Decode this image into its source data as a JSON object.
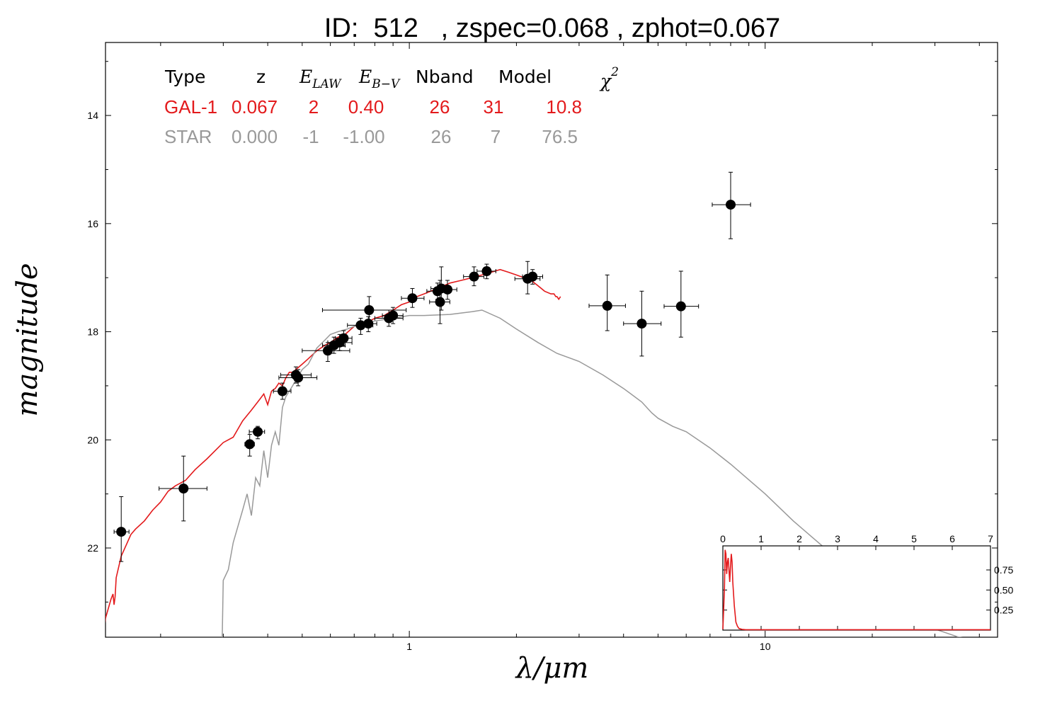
{
  "title": "ID:  512   , zspec=0.068 , zphot=0.067",
  "colors": {
    "galaxy": "#e31a1c",
    "star": "#999999",
    "points": "#000000"
  },
  "table": {
    "headers": [
      "Type",
      "z",
      "E",
      "LAW",
      "E",
      "B−V",
      "Nband",
      "Model",
      "χ",
      "2"
    ],
    "rows": [
      {
        "cells": [
          "GAL-1",
          "0.067",
          "2",
          "0.40",
          "26",
          "31",
          "10.8"
        ],
        "color": "#e31a1c"
      },
      {
        "cells": [
          "STAR",
          "0.000",
          "-1",
          "-1.00",
          "26",
          "7",
          "76.5"
        ],
        "color": "#999999"
      }
    ]
  },
  "chart_data": {
    "type": "scatter",
    "xlabel": "λ/μm",
    "ylabel": "magnitude",
    "xscale": "log",
    "xlim": [
      0.14,
      45
    ],
    "ylim": [
      23.65,
      12.65
    ],
    "x_tick_labels": [
      {
        "value": 1,
        "label": "1"
      },
      {
        "value": 10,
        "label": "10"
      }
    ],
    "y_ticks": [
      14,
      16,
      18,
      20,
      22
    ],
    "points": [
      {
        "x": 0.155,
        "y": 21.7,
        "xerr": [
          0.148,
          0.163
        ],
        "yerr": [
          21.05,
          22.25
        ]
      },
      {
        "x": 0.232,
        "y": 20.9,
        "xerr": [
          0.198,
          0.27
        ],
        "yerr": [
          20.3,
          21.5
        ]
      },
      {
        "x": 0.356,
        "y": 20.08,
        "xerr": [
          0.345,
          0.367
        ],
        "yerr": [
          19.9,
          20.3
        ]
      },
      {
        "x": 0.375,
        "y": 19.85,
        "xerr": [
          0.355,
          0.392
        ],
        "yerr": [
          19.75,
          19.98
        ]
      },
      {
        "x": 0.44,
        "y": 19.1,
        "xerr": [
          0.415,
          0.465
        ],
        "yerr": [
          18.95,
          19.25
        ]
      },
      {
        "x": 0.48,
        "y": 18.8,
        "xerr": [
          0.435,
          0.53
        ],
        "yerr": [
          18.65,
          18.95
        ]
      },
      {
        "x": 0.487,
        "y": 18.85,
        "xerr": [
          0.43,
          0.55
        ],
        "yerr": [
          18.7,
          19.0
        ]
      },
      {
        "x": 0.59,
        "y": 18.35,
        "xerr": [
          0.5,
          0.68
        ],
        "yerr": [
          18.2,
          18.55
        ]
      },
      {
        "x": 0.614,
        "y": 18.25,
        "xerr": [
          0.57,
          0.66
        ],
        "yerr": [
          18.1,
          18.4
        ]
      },
      {
        "x": 0.637,
        "y": 18.2,
        "xerr": [
          0.59,
          0.69
        ],
        "yerr": [
          18.05,
          18.35
        ]
      },
      {
        "x": 0.654,
        "y": 18.12,
        "xerr": [
          0.62,
          0.69
        ],
        "yerr": [
          17.98,
          18.27
        ]
      },
      {
        "x": 0.73,
        "y": 17.88,
        "xerr": [
          0.67,
          0.79
        ],
        "yerr": [
          17.75,
          18.05
        ]
      },
      {
        "x": 0.767,
        "y": 17.85,
        "xerr": [
          0.73,
          0.81
        ],
        "yerr": [
          17.72,
          18.0
        ]
      },
      {
        "x": 0.771,
        "y": 17.6,
        "xerr": [
          0.57,
          0.98
        ],
        "yerr": [
          17.35,
          17.85
        ]
      },
      {
        "x": 0.876,
        "y": 17.75,
        "xerr": [
          0.8,
          0.96
        ],
        "yerr": [
          17.6,
          17.9
        ]
      },
      {
        "x": 0.9,
        "y": 17.7,
        "xerr": [
          0.84,
          0.96
        ],
        "yerr": [
          17.55,
          17.85
        ]
      },
      {
        "x": 1.02,
        "y": 17.38,
        "xerr": [
          0.95,
          1.1
        ],
        "yerr": [
          17.2,
          17.55
        ]
      },
      {
        "x": 1.2,
        "y": 17.25,
        "xerr": [
          1.12,
          1.28
        ],
        "yerr": [
          17.1,
          17.4
        ]
      },
      {
        "x": 1.22,
        "y": 17.45,
        "xerr": [
          1.14,
          1.3
        ],
        "yerr": [
          17.05,
          17.85
        ]
      },
      {
        "x": 1.23,
        "y": 17.2,
        "xerr": [
          1.15,
          1.31
        ],
        "yerr": [
          16.8,
          17.6
        ]
      },
      {
        "x": 1.28,
        "y": 17.22,
        "xerr": [
          1.2,
          1.36
        ],
        "yerr": [
          17.05,
          17.4
        ]
      },
      {
        "x": 1.52,
        "y": 16.98,
        "xerr": [
          1.42,
          1.62
        ],
        "yerr": [
          16.8,
          17.15
        ]
      },
      {
        "x": 1.65,
        "y": 16.88,
        "xerr": [
          1.55,
          1.75
        ],
        "yerr": [
          16.75,
          17.02
        ]
      },
      {
        "x": 2.15,
        "y": 17.02,
        "xerr": [
          1.98,
          2.33
        ],
        "yerr": [
          16.7,
          17.3
        ]
      },
      {
        "x": 2.22,
        "y": 16.98,
        "xerr": [
          2.08,
          2.37
        ],
        "yerr": [
          16.85,
          17.12
        ]
      },
      {
        "x": 3.6,
        "y": 17.52,
        "xerr": [
          3.2,
          4.05
        ],
        "yerr": [
          16.95,
          17.98
        ]
      },
      {
        "x": 4.5,
        "y": 17.85,
        "xerr": [
          4.0,
          5.1
        ],
        "yerr": [
          17.25,
          18.45
        ]
      },
      {
        "x": 5.8,
        "y": 17.53,
        "xerr": [
          5.2,
          6.5
        ],
        "yerr": [
          16.88,
          18.1
        ]
      },
      {
        "x": 8.0,
        "y": 15.65,
        "xerr": [
          7.1,
          9.1
        ],
        "yerr": [
          15.05,
          16.28
        ]
      }
    ],
    "series": [
      {
        "name": "GAL-1",
        "color": "#e31a1c",
        "x": [
          0.138,
          0.14,
          0.145,
          0.147,
          0.148,
          0.149,
          0.15,
          0.155,
          0.16,
          0.165,
          0.17,
          0.18,
          0.19,
          0.2,
          0.21,
          0.22,
          0.235,
          0.25,
          0.27,
          0.3,
          0.32,
          0.34,
          0.36,
          0.38,
          0.39,
          0.4,
          0.41,
          0.42,
          0.43,
          0.44,
          0.45,
          0.46,
          0.47,
          0.48,
          0.5,
          0.52,
          0.55,
          0.58,
          0.6,
          0.63,
          0.66,
          0.7,
          0.75,
          0.8,
          0.85,
          0.9,
          0.95,
          1.0,
          1.05,
          1.1,
          1.2,
          1.3,
          1.4,
          1.5,
          1.6,
          1.7,
          1.8,
          1.9,
          2.0,
          2.1,
          2.2,
          2.3,
          2.4,
          2.5,
          2.55,
          2.58,
          2.6,
          2.63,
          2.66
        ],
        "y": [
          23.65,
          23.3,
          22.95,
          22.85,
          23.05,
          22.9,
          22.55,
          22.15,
          21.95,
          21.75,
          21.65,
          21.5,
          21.3,
          21.15,
          20.95,
          20.85,
          20.75,
          20.55,
          20.35,
          20.05,
          19.95,
          19.65,
          19.45,
          19.25,
          19.15,
          19.35,
          19.1,
          19.05,
          18.95,
          19.0,
          18.85,
          18.75,
          18.75,
          18.7,
          18.6,
          18.5,
          18.35,
          18.25,
          18.2,
          18.1,
          18.05,
          17.9,
          17.85,
          17.75,
          17.7,
          17.6,
          17.5,
          17.45,
          17.35,
          17.3,
          17.2,
          17.1,
          17.05,
          17.0,
          16.95,
          16.9,
          16.85,
          16.9,
          16.95,
          17.0,
          17.05,
          17.15,
          17.25,
          17.3,
          17.3,
          17.35,
          17.35,
          17.4,
          17.35
        ]
      },
      {
        "name": "STAR",
        "color": "#999999",
        "x": [
          0.298,
          0.3,
          0.31,
          0.32,
          0.34,
          0.35,
          0.36,
          0.37,
          0.38,
          0.39,
          0.4,
          0.41,
          0.42,
          0.43,
          0.44,
          0.45,
          0.47,
          0.5,
          0.52,
          0.55,
          0.58,
          0.6,
          0.63,
          0.67,
          0.7,
          0.75,
          0.8,
          0.9,
          1.0,
          1.1,
          1.3,
          1.5,
          1.6,
          1.8,
          2.0,
          2.3,
          2.6,
          3.0,
          3.5,
          4.0,
          4.5,
          4.8,
          5.0,
          5.5,
          6.0,
          7.0,
          8.0,
          10.0,
          12.0,
          15.0,
          20.0,
          25.0,
          30.0,
          35.0,
          40.0
        ],
        "y": [
          23.65,
          22.6,
          22.4,
          21.9,
          21.3,
          21.0,
          21.4,
          20.7,
          20.85,
          20.2,
          20.7,
          20.1,
          19.85,
          20.1,
          19.4,
          19.2,
          19.0,
          18.7,
          18.6,
          18.3,
          18.15,
          18.05,
          18.0,
          17.95,
          17.9,
          17.85,
          17.8,
          17.75,
          17.7,
          17.7,
          17.68,
          17.63,
          17.6,
          17.75,
          17.95,
          18.2,
          18.4,
          18.55,
          18.8,
          19.05,
          19.3,
          19.5,
          19.6,
          19.75,
          19.85,
          20.15,
          20.45,
          21.0,
          21.5,
          22.05,
          22.75,
          23.2,
          23.5,
          23.65,
          23.7
        ]
      }
    ],
    "inset": {
      "type": "line",
      "xlim": [
        0,
        7
      ],
      "ylim": [
        0,
        1.05
      ],
      "x_ticks": [
        0,
        1,
        2,
        3,
        4,
        5,
        6,
        7
      ],
      "y_ticks": [
        0.25,
        0.5,
        0.75
      ],
      "y_tick_labels": [
        "0.25",
        "0.50",
        "0.75"
      ],
      "color": "#e31a1c",
      "x": [
        0.0,
        0.04,
        0.06,
        0.08,
        0.1,
        0.12,
        0.14,
        0.16,
        0.18,
        0.2,
        0.22,
        0.24,
        0.26,
        0.3,
        0.34,
        0.38,
        0.42,
        0.5,
        0.6,
        1.0,
        7.0
      ],
      "y": [
        0.01,
        0.5,
        1.0,
        0.95,
        0.7,
        0.85,
        0.9,
        0.75,
        0.6,
        0.8,
        0.95,
        0.85,
        0.6,
        0.3,
        0.1,
        0.05,
        0.02,
        0.01,
        0.005,
        0.005,
        0.005
      ]
    }
  }
}
